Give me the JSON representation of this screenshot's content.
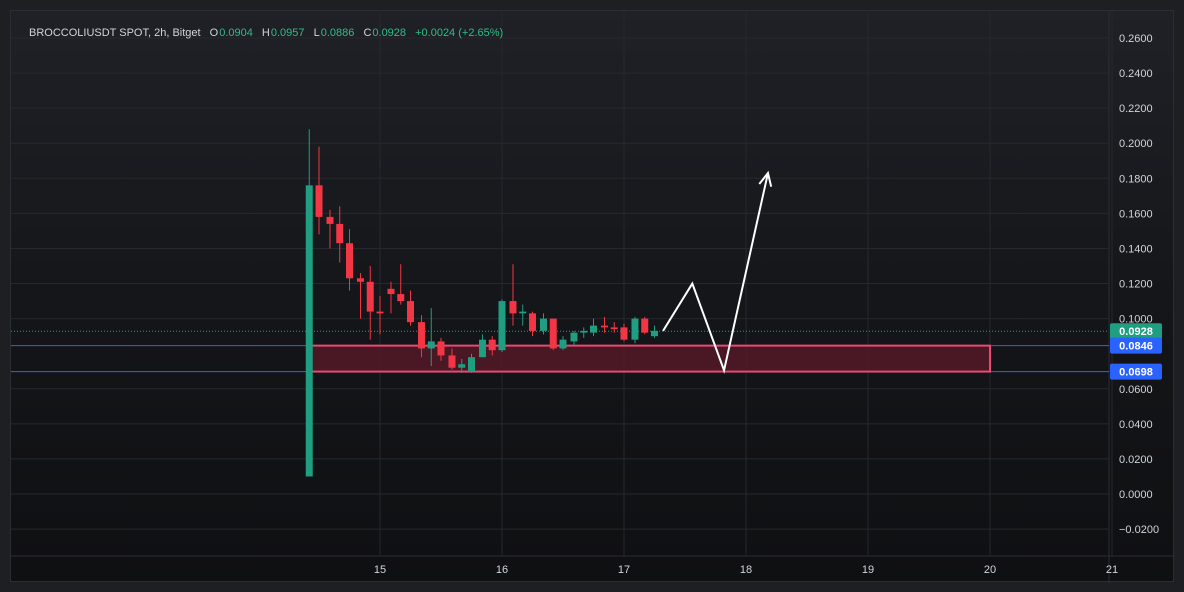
{
  "header": {
    "symbol": "BROCCOLIUSDT SPOT, 2h, Bitget",
    "o_label": "O",
    "o_value": "0.0904",
    "h_label": "H",
    "h_value": "0.0957",
    "l_label": "L",
    "l_value": "0.0886",
    "c_label": "C",
    "c_value": "0.0928",
    "change": "+0.0024 (+2.65%)"
  },
  "colors": {
    "up": "#1f9e82",
    "down": "#f23645",
    "hline": "#2962ff",
    "zone_fill": "#5c1a2a",
    "zone_stroke": "#e84a73",
    "last_price": "#1f9e82",
    "arrow": "#ffffff"
  },
  "chart_data": {
    "type": "candlestick",
    "timeframe": "2h",
    "y_ticks": [
      "0.2600",
      "0.2400",
      "0.2200",
      "0.2000",
      "0.1800",
      "0.1600",
      "0.1400",
      "0.1200",
      "0.1000",
      "0.0600",
      "0.0400",
      "0.0200",
      "0.0000",
      "−0.0200"
    ],
    "x_ticks": [
      "15",
      "16",
      "17",
      "18",
      "19",
      "20",
      "21"
    ],
    "ylim": [
      -0.03,
      0.27
    ],
    "xlim": [
      14.0,
      21.5
    ],
    "candles": [
      {
        "x": 14.42,
        "o": 0.01,
        "h": 0.208,
        "l": 0.01,
        "c": 0.176
      },
      {
        "x": 14.5,
        "o": 0.176,
        "h": 0.198,
        "l": 0.148,
        "c": 0.158
      },
      {
        "x": 14.59,
        "o": 0.158,
        "h": 0.162,
        "l": 0.14,
        "c": 0.154
      },
      {
        "x": 14.67,
        "o": 0.154,
        "h": 0.164,
        "l": 0.132,
        "c": 0.143
      },
      {
        "x": 14.75,
        "o": 0.143,
        "h": 0.151,
        "l": 0.116,
        "c": 0.123
      },
      {
        "x": 14.84,
        "o": 0.123,
        "h": 0.126,
        "l": 0.1,
        "c": 0.121
      },
      {
        "x": 14.92,
        "o": 0.121,
        "h": 0.13,
        "l": 0.088,
        "c": 0.104
      },
      {
        "x": 15.0,
        "o": 0.104,
        "h": 0.113,
        "l": 0.091,
        "c": 0.103
      },
      {
        "x": 15.09,
        "o": 0.117,
        "h": 0.121,
        "l": 0.103,
        "c": 0.114
      },
      {
        "x": 15.17,
        "o": 0.114,
        "h": 0.131,
        "l": 0.108,
        "c": 0.11
      },
      {
        "x": 15.25,
        "o": 0.11,
        "h": 0.116,
        "l": 0.096,
        "c": 0.098
      },
      {
        "x": 15.34,
        "o": 0.098,
        "h": 0.102,
        "l": 0.078,
        "c": 0.083
      },
      {
        "x": 15.42,
        "o": 0.083,
        "h": 0.106,
        "l": 0.073,
        "c": 0.087
      },
      {
        "x": 15.5,
        "o": 0.087,
        "h": 0.089,
        "l": 0.076,
        "c": 0.079
      },
      {
        "x": 15.59,
        "o": 0.079,
        "h": 0.083,
        "l": 0.071,
        "c": 0.072
      },
      {
        "x": 15.67,
        "o": 0.072,
        "h": 0.077,
        "l": 0.069,
        "c": 0.074
      },
      {
        "x": 15.75,
        "o": 0.07,
        "h": 0.08,
        "l": 0.069,
        "c": 0.078
      },
      {
        "x": 15.84,
        "o": 0.078,
        "h": 0.091,
        "l": 0.078,
        "c": 0.088
      },
      {
        "x": 15.92,
        "o": 0.088,
        "h": 0.09,
        "l": 0.079,
        "c": 0.082
      },
      {
        "x": 16.0,
        "o": 0.082,
        "h": 0.111,
        "l": 0.081,
        "c": 0.11
      },
      {
        "x": 16.09,
        "o": 0.11,
        "h": 0.131,
        "l": 0.096,
        "c": 0.103
      },
      {
        "x": 16.17,
        "o": 0.103,
        "h": 0.108,
        "l": 0.096,
        "c": 0.104
      },
      {
        "x": 16.25,
        "o": 0.103,
        "h": 0.104,
        "l": 0.09,
        "c": 0.093
      },
      {
        "x": 16.34,
        "o": 0.093,
        "h": 0.103,
        "l": 0.091,
        "c": 0.1
      },
      {
        "x": 16.42,
        "o": 0.1,
        "h": 0.1,
        "l": 0.082,
        "c": 0.083
      },
      {
        "x": 16.5,
        "o": 0.083,
        "h": 0.09,
        "l": 0.082,
        "c": 0.088
      },
      {
        "x": 16.59,
        "o": 0.087,
        "h": 0.093,
        "l": 0.085,
        "c": 0.092
      },
      {
        "x": 16.67,
        "o": 0.092,
        "h": 0.095,
        "l": 0.089,
        "c": 0.093
      },
      {
        "x": 16.75,
        "o": 0.092,
        "h": 0.1,
        "l": 0.09,
        "c": 0.096
      },
      {
        "x": 16.84,
        "o": 0.096,
        "h": 0.101,
        "l": 0.092,
        "c": 0.095
      },
      {
        "x": 16.92,
        "o": 0.095,
        "h": 0.098,
        "l": 0.092,
        "c": 0.094
      },
      {
        "x": 17.0,
        "o": 0.095,
        "h": 0.097,
        "l": 0.087,
        "c": 0.088
      },
      {
        "x": 17.09,
        "o": 0.088,
        "h": 0.101,
        "l": 0.086,
        "c": 0.1
      },
      {
        "x": 17.17,
        "o": 0.1,
        "h": 0.101,
        "l": 0.091,
        "c": 0.092
      },
      {
        "x": 17.25,
        "o": 0.09,
        "h": 0.096,
        "l": 0.089,
        "c": 0.093
      }
    ],
    "h_lines": [
      0.0846,
      0.0698
    ],
    "zone": {
      "x0": 14.42,
      "x1": 20.0,
      "y_top": 0.0846,
      "y_bottom": 0.0698
    },
    "last_price": 0.0928,
    "price_labels": [
      "0.0928",
      "0.0846",
      "0.0698"
    ],
    "projection": [
      [
        17.32,
        0.093
      ],
      [
        17.56,
        0.12
      ],
      [
        17.82,
        0.0705
      ],
      [
        18.18,
        0.183
      ]
    ]
  }
}
